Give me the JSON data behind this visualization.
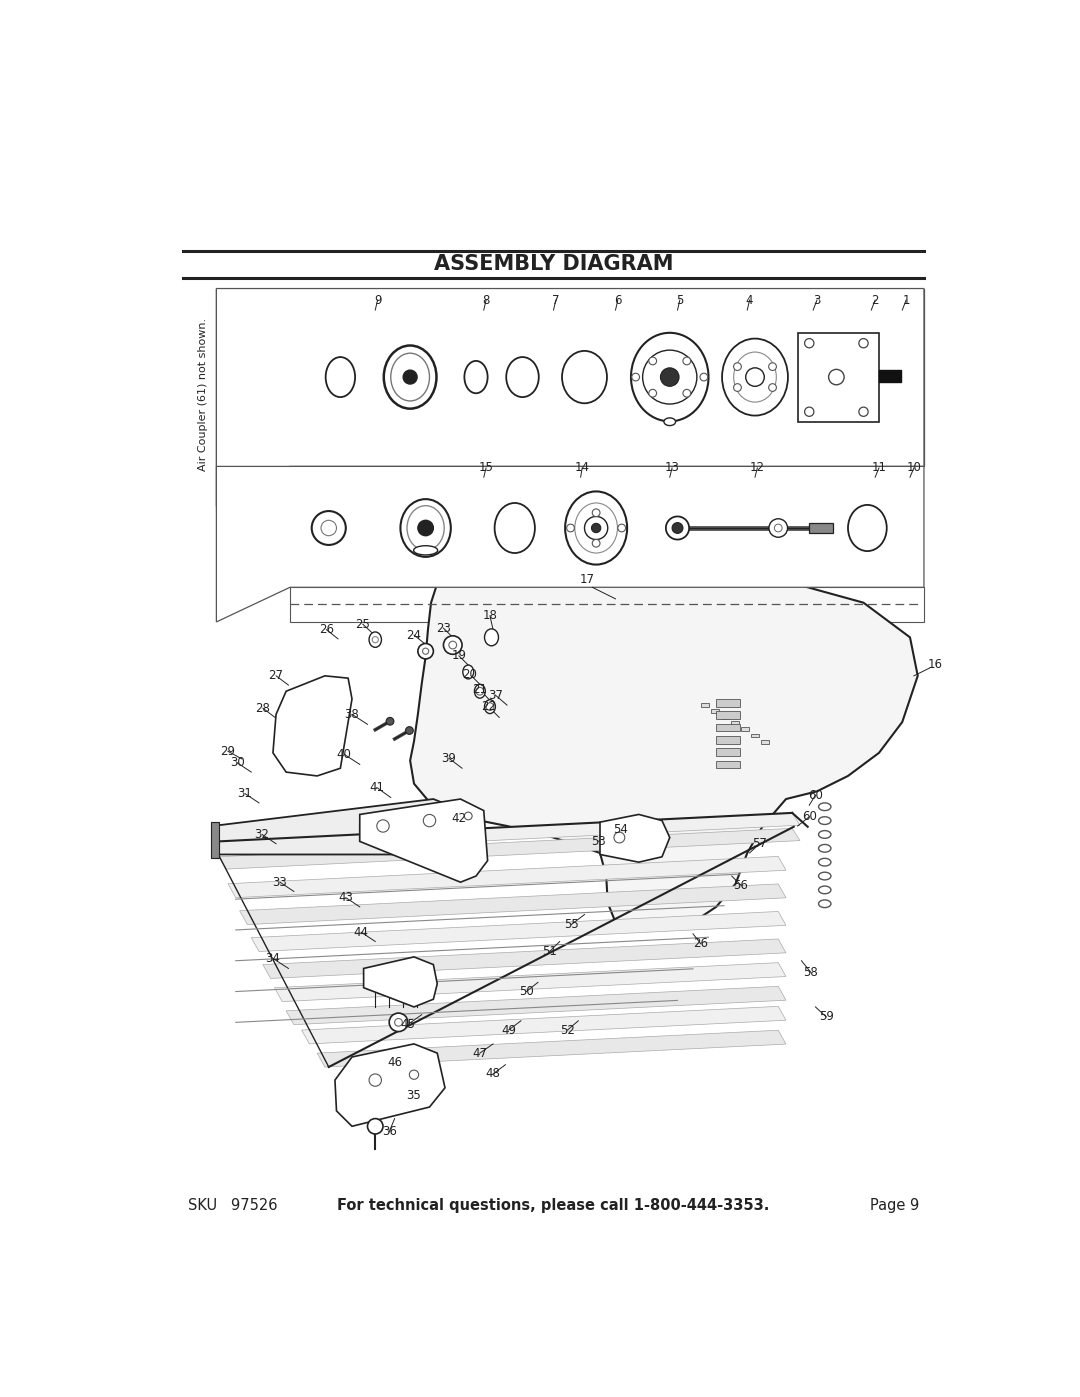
{
  "title": "ASSEMBLY DIAGRAM",
  "bg_color": "#ffffff",
  "footer_sku": "SKU   97526",
  "footer_middle": "For technical questions, please call 1-800-444-3353.",
  "footer_page": "Page 9",
  "sidebar_text": "Air Coupler (61) not shown.",
  "line_color": "#222222",
  "title_fontsize": 15,
  "label_fontsize": 8.5
}
